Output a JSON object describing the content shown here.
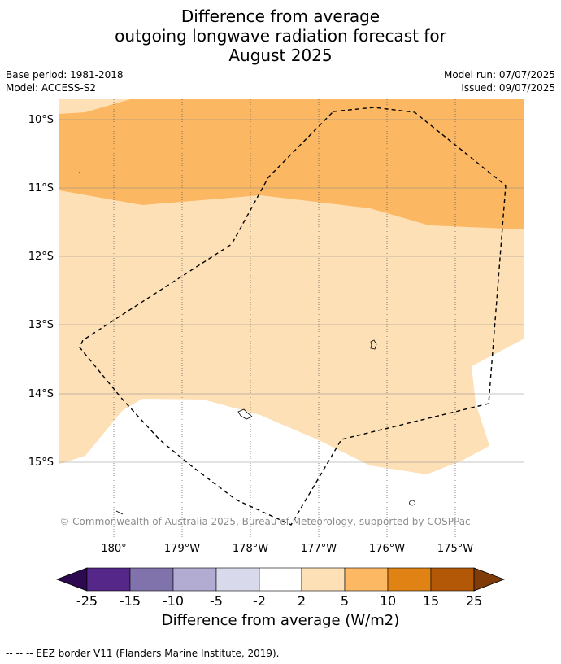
{
  "title": {
    "line1": "Difference from average",
    "line2": "outgoing longwave radiation forecast for",
    "line3": "August 2025"
  },
  "meta": {
    "base_period": "Base period: 1981-2018",
    "model": "Model: ACCESS-S2",
    "model_run": "Model run: 07/07/2025",
    "issued": "Issued: 09/07/2025"
  },
  "map": {
    "lat_labels": [
      "10°S",
      "11°S",
      "12°S",
      "13°S",
      "14°S",
      "15°S"
    ],
    "lon_labels": [
      "180°",
      "179°W",
      "178°W",
      "177°W",
      "176°W",
      "175°W"
    ],
    "copyright": "© Commonwealth of Australia 2025, Bureau of Meteorology, supported by COSPPac",
    "colors": {
      "band_5_10": "#fbb762",
      "band_2_5": "#fde0b6",
      "band_neutral": "#ffffff"
    }
  },
  "colorbar": {
    "tick_labels": [
      "-25",
      "-15",
      "-10",
      "-5",
      "-2",
      "2",
      "5",
      "10",
      "15",
      "25"
    ],
    "colors": [
      "#2d0a4f",
      "#542788",
      "#8073ac",
      "#b2abd2",
      "#d8daeb",
      "#ffffff",
      "#fee0b6",
      "#fdb863",
      "#e08214",
      "#b35806",
      "#7f3b08"
    ],
    "label": "Difference from average (W/m2)"
  },
  "footnote": "--  --  -- EEZ border V11 (Flanders Marine Institute, 2019)."
}
